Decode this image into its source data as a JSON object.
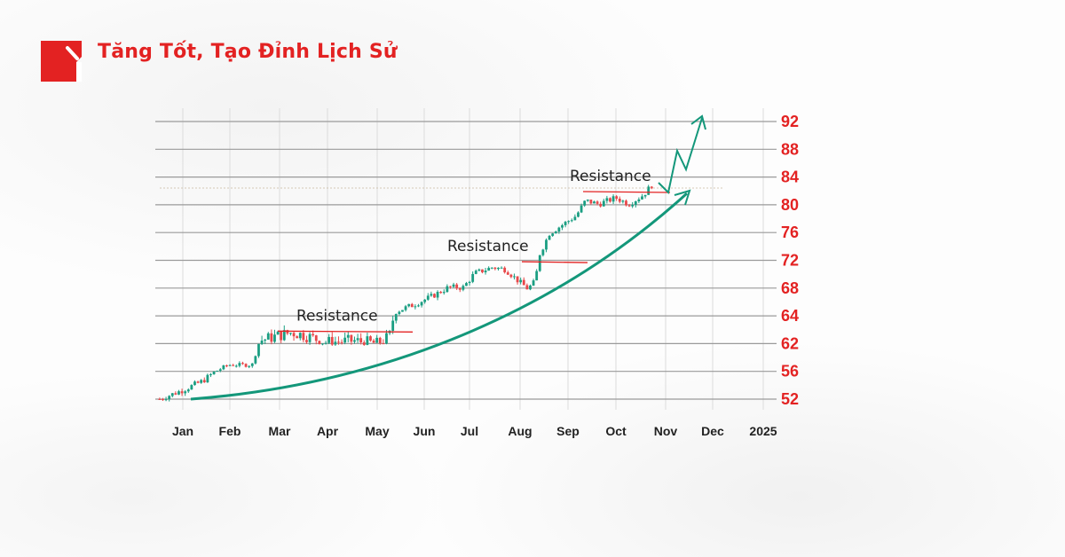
{
  "header": {
    "title": "Tăng Tốt, Tạo Đỉnh Lịch Sử",
    "logo_icon": "brand-logo-icon"
  },
  "colors": {
    "brand": "#e32222",
    "up": "#1a9e82",
    "down": "#e8484a",
    "trend": "#13977a",
    "resistance": "#e32222"
  },
  "chart_data": {
    "type": "candlestick",
    "title": "",
    "xlabel": "",
    "ylabel": "",
    "x_ticks": [
      "Jan",
      "Feb",
      "Mar",
      "Apr",
      "May",
      "Jun",
      "Jul",
      "Aug",
      "Sep",
      "Oct",
      "Nov",
      "Dec",
      "2025"
    ],
    "y_ticks": [
      52,
      56,
      62,
      64,
      68,
      72,
      76,
      80,
      84,
      88,
      92
    ],
    "y_axis_position": "right",
    "grid": true,
    "price_path": [
      {
        "date": "2023-12-17",
        "close": 52.0
      },
      {
        "date": "2024-01-01",
        "close": 53.3
      },
      {
        "date": "2024-01-14",
        "close": 54.6
      },
      {
        "date": "2024-01-31",
        "close": 57.4
      },
      {
        "date": "2024-02-14",
        "close": 57.4
      },
      {
        "date": "2024-02-18",
        "close": 62.2
      },
      {
        "date": "2024-03-01",
        "close": 62.6
      },
      {
        "date": "2024-03-09",
        "close": 62.8
      },
      {
        "date": "2024-03-17",
        "close": 62.6
      },
      {
        "date": "2024-03-31",
        "close": 62.1
      },
      {
        "date": "2024-04-17",
        "close": 62.2
      },
      {
        "date": "2024-05-01",
        "close": 62.0
      },
      {
        "date": "2024-05-09",
        "close": 62.5
      },
      {
        "date": "2024-05-13",
        "close": 64.6
      },
      {
        "date": "2024-05-25",
        "close": 65.6
      },
      {
        "date": "2024-06-06",
        "close": 66.8
      },
      {
        "date": "2024-06-17",
        "close": 68.1
      },
      {
        "date": "2024-06-27",
        "close": 68.1
      },
      {
        "date": "2024-07-04",
        "close": 70.1
      },
      {
        "date": "2024-07-15",
        "close": 71.0
      },
      {
        "date": "2024-07-23",
        "close": 70.7
      },
      {
        "date": "2024-08-01",
        "close": 68.8
      },
      {
        "date": "2024-08-06",
        "close": 67.9
      },
      {
        "date": "2024-08-11",
        "close": 69.0
      },
      {
        "date": "2024-08-13",
        "close": 72.6
      },
      {
        "date": "2024-08-20",
        "close": 75.9
      },
      {
        "date": "2024-08-29",
        "close": 77.2
      },
      {
        "date": "2024-09-06",
        "close": 78.4
      },
      {
        "date": "2024-09-12",
        "close": 80.6
      },
      {
        "date": "2024-09-20",
        "close": 80.1
      },
      {
        "date": "2024-10-01",
        "close": 81.0
      },
      {
        "date": "2024-10-09",
        "close": 80.1
      },
      {
        "date": "2024-10-18",
        "close": 81.4
      },
      {
        "date": "2024-10-24",
        "close": 83.0
      }
    ],
    "annotations": [
      {
        "label": "Resistance",
        "level": 62.9
      },
      {
        "label": "Resistance",
        "level": 71.8
      },
      {
        "label": "Resistance",
        "level": 81.9
      }
    ]
  }
}
